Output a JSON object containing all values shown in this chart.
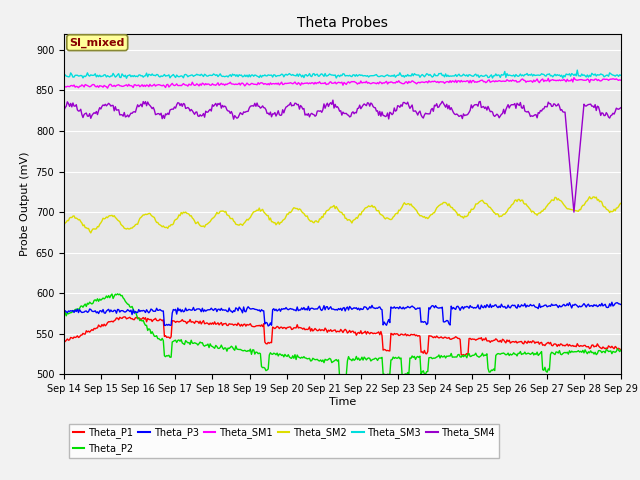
{
  "title": "Theta Probes",
  "xlabel": "Time",
  "ylabel": "Probe Output (mV)",
  "xlim": [
    0,
    15
  ],
  "ylim": [
    500,
    920
  ],
  "yticks": [
    500,
    550,
    600,
    650,
    700,
    750,
    800,
    850,
    900
  ],
  "x_labels": [
    "Sep 14",
    "Sep 15",
    "Sep 16",
    "Sep 17",
    "Sep 18",
    "Sep 19",
    "Sep 20",
    "Sep 21",
    "Sep 22",
    "Sep 23",
    "Sep 24",
    "Sep 25",
    "Sep 26",
    "Sep 27",
    "Sep 28",
    "Sep 29"
  ],
  "background_color": "#e8e8e8",
  "fig_background": "#f2f2f2",
  "colors": {
    "Theta_P1": "#ff0000",
    "Theta_P2": "#00dd00",
    "Theta_P3": "#0000ff",
    "Theta_SM1": "#ff00ff",
    "Theta_SM2": "#dddd00",
    "Theta_SM3": "#00dddd",
    "Theta_SM4": "#9900cc"
  },
  "annotation_text": "SI_mixed",
  "annotation_color": "#880000",
  "annotation_bg": "#ffff99",
  "n_points": 500
}
